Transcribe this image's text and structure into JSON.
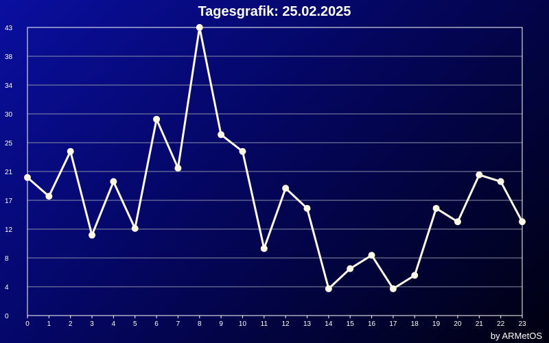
{
  "header": {
    "title": "Tagesgrafik: 25.02.2025"
  },
  "footer": {
    "credit": "by ARMetOS"
  },
  "colors": {
    "line": "#fffbe6",
    "grid": "#8a8fa8",
    "axis": "#ffffff",
    "text": "#ffffff"
  },
  "chart_data": {
    "type": "line",
    "title": "Tagesgrafik: 25.02.2025",
    "xlabel": "",
    "ylabel": "",
    "x": [
      0,
      1,
      2,
      3,
      4,
      5,
      6,
      7,
      8,
      9,
      10,
      11,
      12,
      13,
      14,
      15,
      16,
      17,
      18,
      19,
      20,
      21,
      22,
      23
    ],
    "x_tick_labels": [
      "0",
      "1",
      "2",
      "3",
      "4",
      "5",
      "6",
      "7",
      "8",
      "9",
      "10",
      "11",
      "12",
      "13",
      "14",
      "15",
      "16",
      "17",
      "18",
      "19",
      "20",
      "21",
      "22",
      "23"
    ],
    "y_tick_labels": [
      "0",
      "4",
      "8",
      "12",
      "17",
      "21",
      "25",
      "30",
      "34",
      "38",
      "43"
    ],
    "ylim": [
      0,
      43
    ],
    "grid": true,
    "legend": "none",
    "series": [
      {
        "values": [
          20.6,
          17.8,
          24.5,
          12,
          20,
          13,
          29.3,
          22,
          43,
          27,
          24.5,
          10,
          19,
          16,
          4,
          7,
          9,
          4,
          6,
          16,
          14,
          21,
          20,
          14
        ]
      }
    ]
  }
}
